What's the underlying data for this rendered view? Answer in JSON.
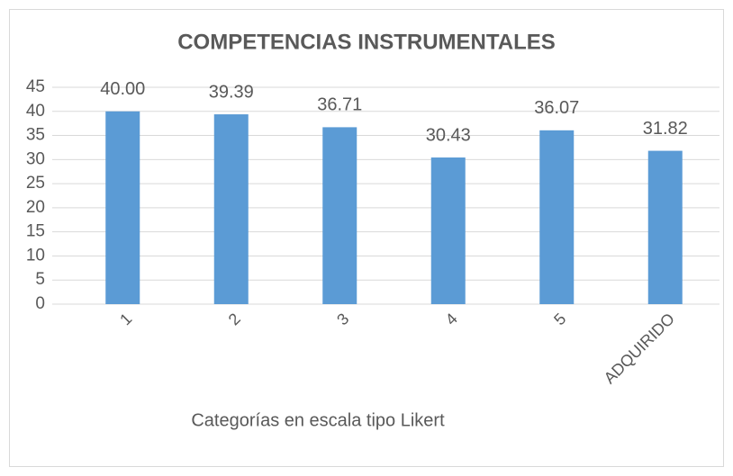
{
  "chart_data": {
    "type": "bar",
    "title": "COMPETENCIAS INSTRUMENTALES",
    "x_label": "Categorías en escala tipo Likert",
    "categories": [
      "1",
      "2",
      "3",
      "4",
      "5",
      "ADQUIRIDO"
    ],
    "values": [
      40,
      39.39,
      36.71,
      30.43,
      36.07,
      31.82
    ],
    "value_labels": [
      "40.00",
      "39.39",
      "36.71",
      "30.43",
      "36.07",
      "31.82"
    ],
    "color": "#5b9bd5",
    "ylim": [
      0,
      45
    ],
    "yticks": [
      0,
      5,
      10,
      15,
      20,
      25,
      30,
      35,
      40,
      45
    ],
    "grid": true
  }
}
